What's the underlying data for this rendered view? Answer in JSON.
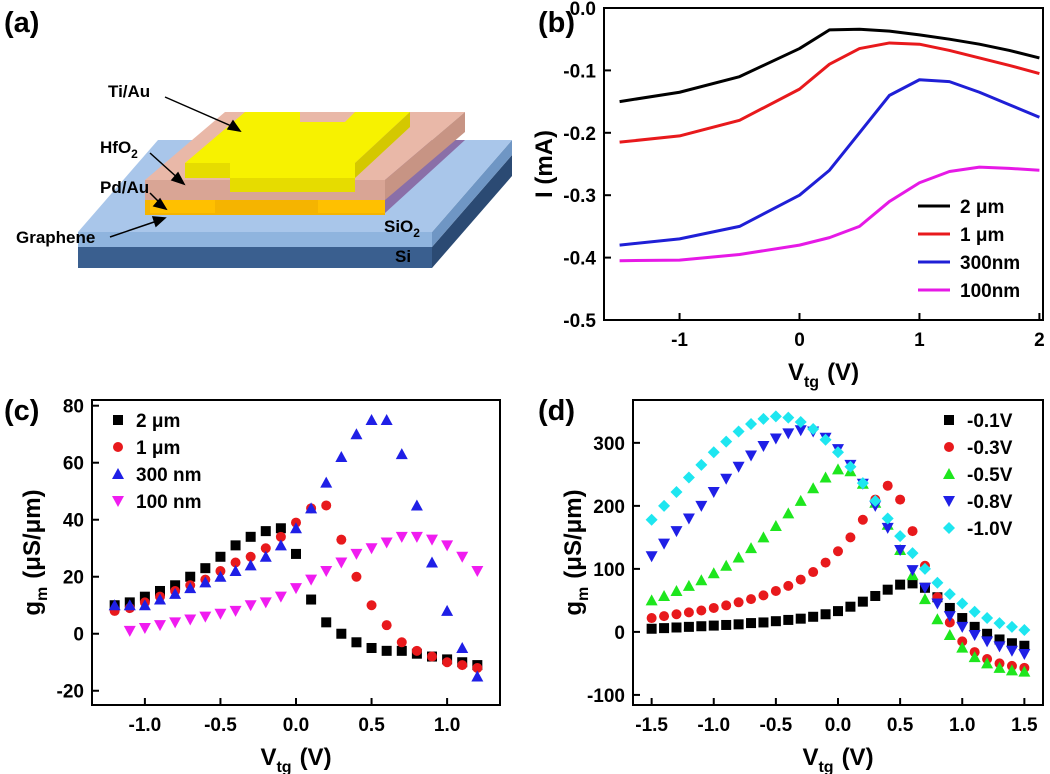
{
  "diagram": {
    "panel_label": "(a)",
    "labels": {
      "tiau": "Ti/Au",
      "hfo2": {
        "text": "HfO",
        "sub": "2"
      },
      "pdau": "Pd/Au",
      "graphene": "Graphene",
      "sio2": {
        "text": "SiO",
        "sub": "2"
      },
      "si": "Si"
    }
  },
  "chart_data": [
    {
      "panel_label": "(b)",
      "type": "line",
      "xlabel": {
        "text": "V",
        "sub": "tg",
        "unit": "(V)"
      },
      "ylabel": {
        "text": "I (mA)"
      },
      "x": [
        -1.5,
        -1,
        -0.5,
        0,
        0.25,
        0.5,
        0.75,
        1,
        1.25,
        1.5,
        1.75,
        2
      ],
      "series": [
        {
          "name": "2 μm",
          "color": "#000000",
          "values": [
            -0.15,
            -0.135,
            -0.11,
            -0.065,
            -0.035,
            -0.034,
            -0.037,
            -0.043,
            -0.05,
            -0.058,
            -0.068,
            -0.08
          ]
        },
        {
          "name": "1 μm",
          "color": "#e8191c",
          "values": [
            -0.215,
            -0.205,
            -0.18,
            -0.13,
            -0.09,
            -0.065,
            -0.056,
            -0.058,
            -0.068,
            -0.08,
            -0.092,
            -0.105
          ]
        },
        {
          "name": "300nm",
          "color": "#1f1fd6",
          "values": [
            -0.38,
            -0.37,
            -0.35,
            -0.3,
            -0.26,
            -0.2,
            -0.14,
            -0.115,
            -0.118,
            -0.135,
            -0.155,
            -0.175
          ]
        },
        {
          "name": "100nm",
          "color": "#e619e6",
          "values": [
            -0.405,
            -0.404,
            -0.395,
            -0.38,
            -0.368,
            -0.35,
            -0.31,
            -0.28,
            -0.262,
            -0.255,
            -0.257,
            -0.26
          ]
        }
      ],
      "xlim": [
        -1.63,
        2.03
      ],
      "ylim": [
        -0.5,
        0
      ],
      "xticks": [
        -1,
        0,
        1,
        2
      ],
      "yticks": [
        {
          "value": 0,
          "label": "0.0"
        },
        -0.1,
        -0.2,
        -0.3,
        -0.4,
        -0.5
      ],
      "legend": "lower right"
    },
    {
      "panel_label": "(c)",
      "type": "scatter",
      "xlabel": {
        "text": "V",
        "sub": "tg",
        "unit": "(V)"
      },
      "ylabel": {
        "text": "g",
        "sub": "m",
        "unit": "(μS/μm)"
      },
      "x": [
        -1.2,
        -1.1,
        -1.0,
        -0.9,
        -0.8,
        -0.7,
        -0.6,
        -0.5,
        -0.4,
        -0.3,
        -0.2,
        -0.1,
        0.0,
        0.1,
        0.2,
        0.3,
        0.4,
        0.5,
        0.6,
        0.7,
        0.8,
        0.9,
        1.0,
        1.1,
        1.2
      ],
      "series": [
        {
          "name": "2 μm",
          "color": "#000000",
          "marker": "square",
          "values": [
            10,
            11,
            13,
            15,
            17,
            20,
            23,
            27,
            31,
            34,
            36,
            37,
            28,
            12,
            4,
            0,
            -3,
            -5,
            -6,
            -6,
            -7,
            -8,
            -9,
            -10,
            -11
          ]
        },
        {
          "name": "1 μm",
          "color": "#e8191c",
          "marker": "circle",
          "values": [
            8,
            9,
            11,
            13,
            15,
            17,
            19,
            22,
            25,
            27,
            30,
            34,
            39,
            44,
            45,
            33,
            20,
            10,
            3,
            -3,
            -6,
            -8,
            -10,
            -11,
            -12
          ]
        },
        {
          "name": "300 nm",
          "color": "#1f1fe6",
          "marker": "triangle-up",
          "values": [
            10,
            10,
            10,
            12,
            14,
            16,
            18,
            20,
            22,
            24,
            27,
            31,
            37,
            44,
            53,
            62,
            70,
            75,
            75,
            63,
            45,
            25,
            8,
            -5,
            -15
          ]
        },
        {
          "name": "100 nm",
          "color": "#f01cf0",
          "marker": "triangle-down",
          "values": [
            null,
            1,
            2,
            3,
            4,
            5,
            6,
            7,
            8,
            10,
            11,
            13,
            16,
            19,
            22,
            25,
            28,
            30,
            32,
            34,
            34,
            33,
            31,
            27,
            22
          ]
        }
      ],
      "xlim": [
        -1.35,
        1.35
      ],
      "ylim": [
        -25,
        82
      ],
      "xticks": [
        {
          "value": -1,
          "label": "-1.0"
        },
        -0.5,
        {
          "value": 0,
          "label": "0.0"
        },
        0.5,
        {
          "value": 1,
          "label": "1.0"
        }
      ],
      "yticks": [
        -20,
        0,
        20,
        40,
        60,
        80
      ],
      "legend": "upper left"
    },
    {
      "panel_label": "(d)",
      "type": "scatter",
      "xlabel": {
        "text": "V",
        "sub": "tg",
        "unit": "(V)"
      },
      "ylabel": {
        "text": "g",
        "sub": "m",
        "unit": "(μS/μm)"
      },
      "x": [
        -1.5,
        -1.4,
        -1.3,
        -1.2,
        -1.1,
        -1.0,
        -0.9,
        -0.8,
        -0.7,
        -0.6,
        -0.5,
        -0.4,
        -0.3,
        -0.2,
        -0.1,
        0.0,
        0.1,
        0.2,
        0.3,
        0.4,
        0.5,
        0.6,
        0.7,
        0.8,
        0.9,
        1.0,
        1.1,
        1.2,
        1.3,
        1.4,
        1.5
      ],
      "series": [
        {
          "name": "-0.1V",
          "color": "#000000",
          "marker": "square",
          "values": [
            5,
            6,
            7,
            8,
            9,
            10,
            11,
            12,
            14,
            15,
            17,
            19,
            21,
            24,
            28,
            33,
            40,
            48,
            57,
            67,
            75,
            77,
            70,
            55,
            38,
            22,
            8,
            -3,
            -12,
            -18,
            -22
          ]
        },
        {
          "name": "-0.3V",
          "color": "#e8191c",
          "marker": "circle",
          "values": [
            22,
            25,
            28,
            31,
            34,
            38,
            42,
            47,
            52,
            58,
            65,
            73,
            83,
            95,
            110,
            128,
            150,
            178,
            210,
            232,
            210,
            160,
            105,
            55,
            15,
            -15,
            -32,
            -43,
            -50,
            -54,
            -57
          ]
        },
        {
          "name": "-0.5V",
          "color": "#1ee61e",
          "marker": "triangle-up",
          "values": [
            50,
            57,
            65,
            73,
            82,
            93,
            105,
            118,
            133,
            150,
            168,
            188,
            208,
            228,
            245,
            258,
            255,
            235,
            205,
            170,
            130,
            90,
            52,
            20,
            -5,
            -25,
            -40,
            -50,
            -57,
            -61,
            -63
          ]
        },
        {
          "name": "-0.8V",
          "color": "#1f1fe6",
          "marker": "triangle-down",
          "values": [
            120,
            140,
            160,
            180,
            200,
            222,
            243,
            262,
            280,
            295,
            307,
            315,
            320,
            318,
            308,
            290,
            265,
            235,
            200,
            165,
            130,
            98,
            70,
            45,
            25,
            8,
            -5,
            -15,
            -23,
            -30,
            -35
          ]
        },
        {
          "name": "-1.0V",
          "color": "#1ee6f0",
          "marker": "diamond",
          "values": [
            178,
            200,
            222,
            245,
            265,
            285,
            302,
            318,
            330,
            338,
            342,
            340,
            333,
            322,
            305,
            285,
            262,
            236,
            208,
            180,
            152,
            125,
            100,
            78,
            60,
            45,
            32,
            22,
            14,
            8,
            3
          ]
        }
      ],
      "xlim": [
        -1.65,
        1.65
      ],
      "ylim": [
        -116,
        368
      ],
      "xticks": [
        -1.5,
        {
          "value": -1,
          "label": "-1.0"
        },
        -0.5,
        {
          "value": 0,
          "label": "0.0"
        },
        0.5,
        {
          "value": 1,
          "label": "1.0"
        },
        1.5
      ],
      "yticks": [
        -100,
        0,
        100,
        200,
        300
      ],
      "legend": "upper right"
    }
  ]
}
